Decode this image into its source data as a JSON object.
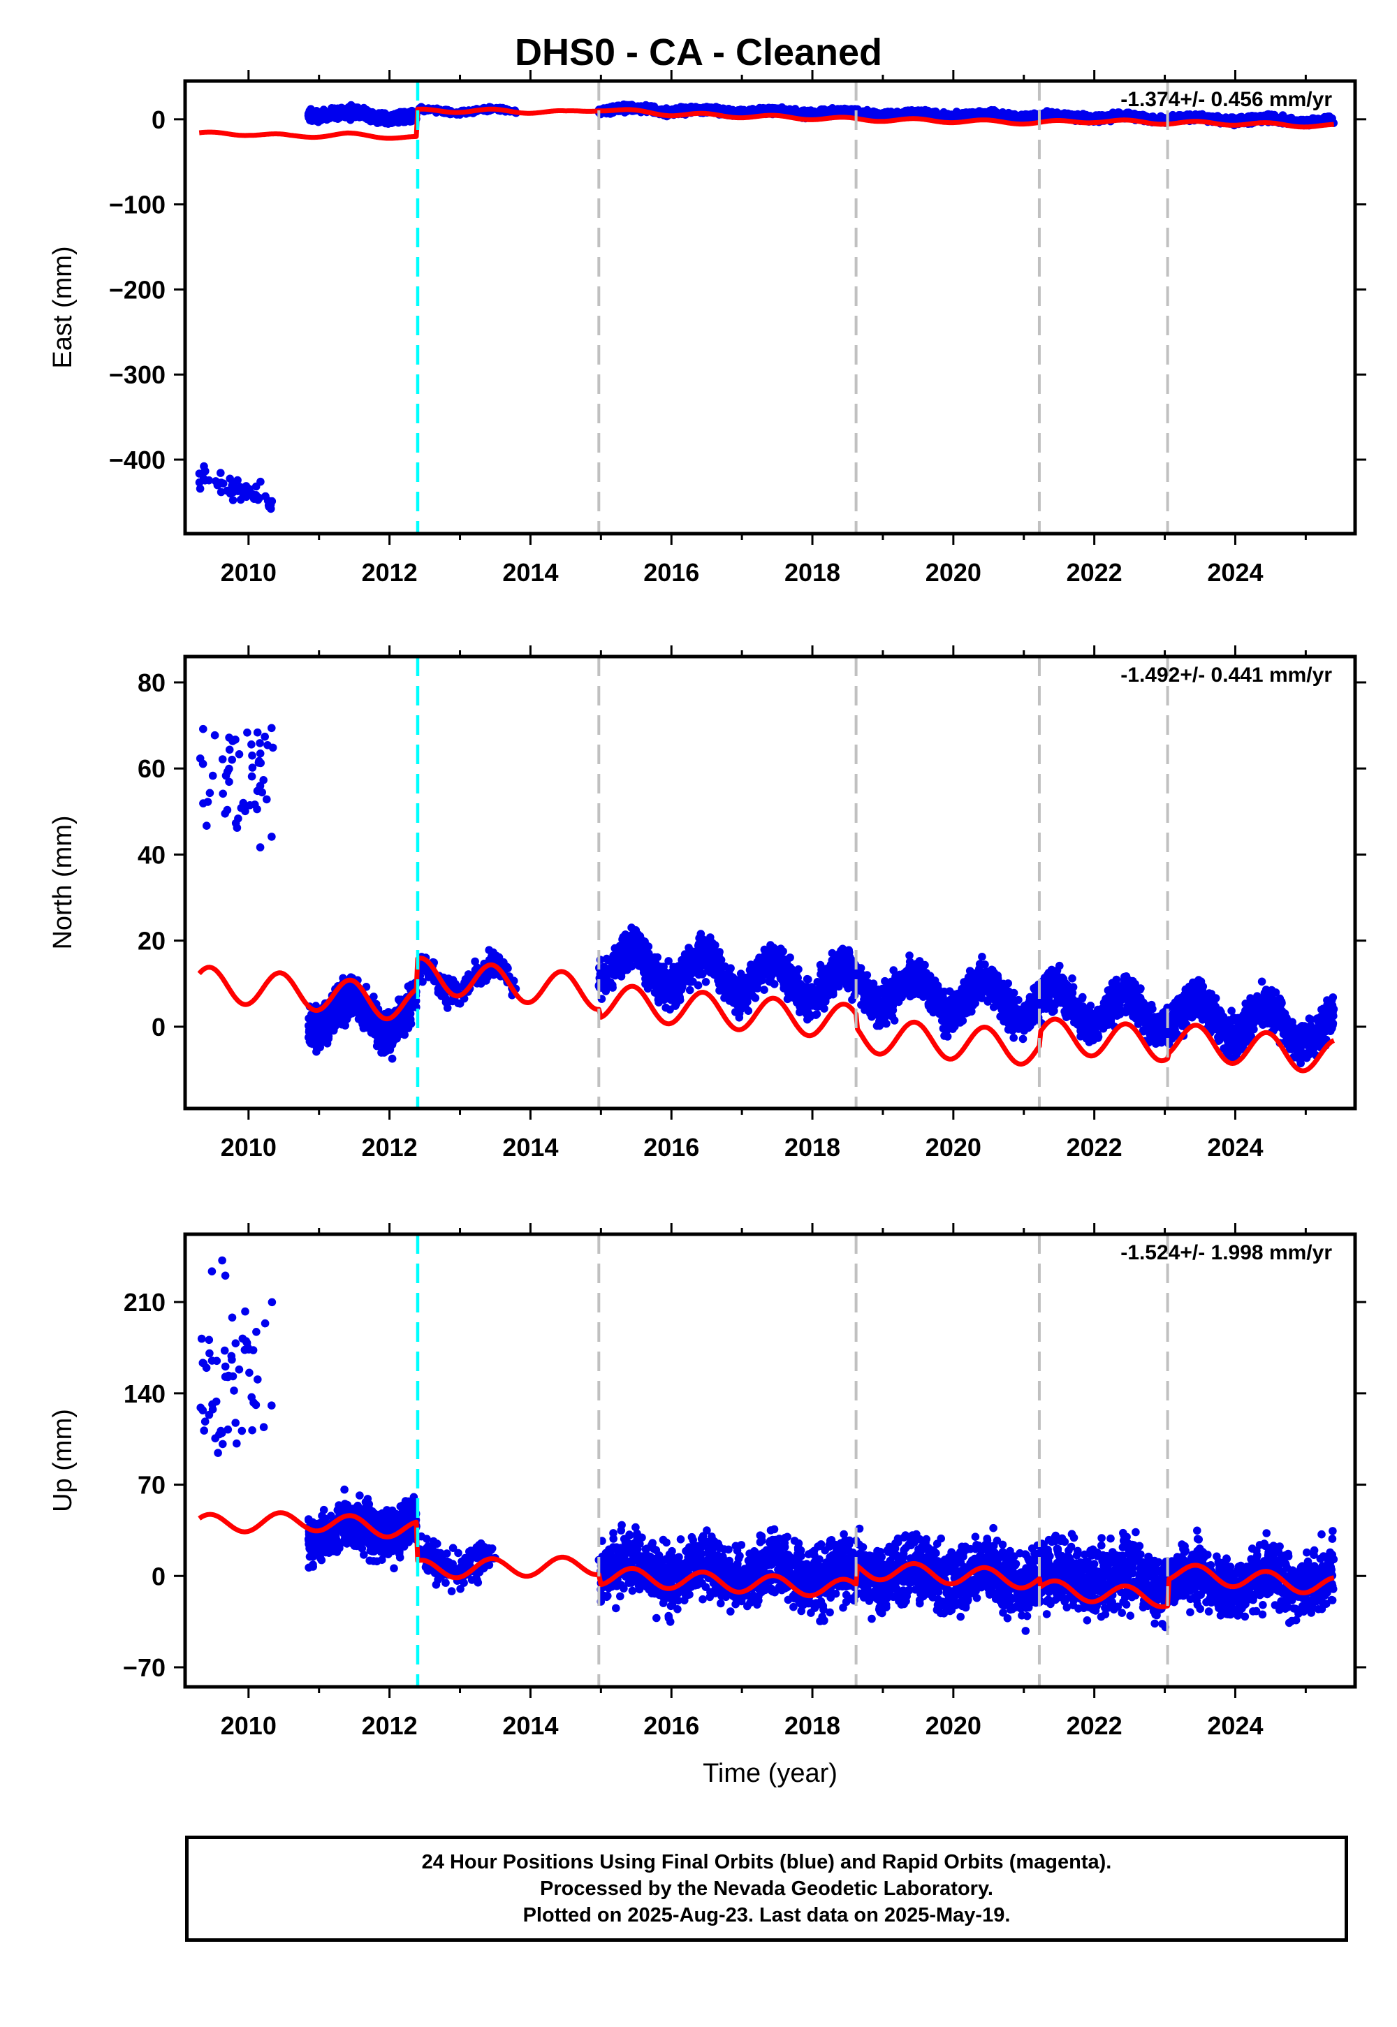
{
  "title": "DHS0  - CA - Cleaned",
  "footer": {
    "line1": "24 Hour Positions Using Final Orbits (blue) and Rapid Orbits (magenta).",
    "line2": "Processed by the Nevada Geodetic Laboratory.",
    "line3": "Plotted on 2025-Aug-23. Last data on 2025-May-19."
  },
  "colors": {
    "data_points": "#0000ee",
    "model_line": "#ff0000",
    "antenna_change": "#00ffff",
    "equipment_change": "#c0c0c0"
  },
  "chart_data": [
    {
      "type": "scatter",
      "component": "east",
      "ylabel": "East (mm)",
      "xlabel": "",
      "rate": "-1.374+/- 0.456 mm/yr",
      "xlim": [
        2009.1,
        2025.7
      ],
      "ylim": [
        -487,
        45
      ],
      "xticks": [
        2010,
        2012,
        2014,
        2016,
        2018,
        2020,
        2022,
        2024
      ],
      "yticks": [
        0,
        -100,
        -200,
        -300,
        -400
      ],
      "steps_cyan": [
        2012.4
      ],
      "steps_gray": [
        2014.97,
        2018.62,
        2021.22,
        2023.04
      ],
      "series": [
        {
          "kind": "points",
          "segments": [
            {
              "x": [
                2009.3,
                2010.35
              ],
              "center": -435,
              "trend": -30,
              "noise": 40,
              "seasonal": 0,
              "density": 55
            },
            {
              "x": [
                2010.85,
                2012.38
              ],
              "center": 5,
              "trend": -5,
              "noise": 18,
              "seasonal": 3,
              "density": 700
            },
            {
              "x": [
                2012.42,
                2013.8
              ],
              "center": 10,
              "trend": 0,
              "noise": 8,
              "seasonal": 2,
              "density": 160
            },
            {
              "x": [
                2014.97,
                2025.4
              ],
              "center": 5,
              "trend": -14,
              "noise": 12,
              "seasonal": 2,
              "density": 3400
            }
          ]
        },
        {
          "kind": "model",
          "points": [
            [
              2009.3,
              -17
            ],
            [
              2010.0,
              -17
            ],
            [
              2010.6,
              -20
            ],
            [
              2011.4,
              -18
            ],
            [
              2012.38,
              -22
            ],
            [
              2012.4,
              10
            ],
            [
              2013.5,
              10
            ],
            [
              2014.5,
              8
            ],
            [
              2014.97,
              12
            ],
            [
              2016.0,
              6
            ],
            [
              2018.62,
              0
            ],
            [
              2020.0,
              -2
            ],
            [
              2021.22,
              -4
            ],
            [
              2022.0,
              -2
            ],
            [
              2023.04,
              -4
            ],
            [
              2024.0,
              -5
            ],
            [
              2025.4,
              -8
            ]
          ],
          "seasonal": 2
        }
      ]
    },
    {
      "type": "scatter",
      "component": "north",
      "ylabel": "North (mm)",
      "xlabel": "",
      "rate": "-1.492+/- 0.441 mm/yr",
      "xlim": [
        2009.1,
        2025.7
      ],
      "ylim": [
        -19,
        86
      ],
      "xticks": [
        2010,
        2012,
        2014,
        2016,
        2018,
        2020,
        2022,
        2024
      ],
      "yticks": [
        80,
        60,
        40,
        20,
        0
      ],
      "steps_cyan": [
        2012.4
      ],
      "steps_gray": [
        2014.97,
        2018.62,
        2021.22,
        2023.04
      ],
      "series": [
        {
          "kind": "points",
          "segments": [
            {
              "x": [
                2009.3,
                2010.35
              ],
              "center": 57,
              "trend": 0,
              "noise": 45,
              "seasonal": 0,
              "density": 55
            },
            {
              "x": [
                2010.85,
                2012.38
              ],
              "center": 3,
              "trend": 0,
              "noise": 14,
              "seasonal": 4,
              "density": 700
            },
            {
              "x": [
                2012.42,
                2013.8
              ],
              "center": 11,
              "trend": 0,
              "noise": 12,
              "seasonal": 3,
              "density": 160
            },
            {
              "x": [
                2014.97,
                2025.4
              ],
              "center": 7,
              "trend": -15,
              "noise": 14,
              "seasonal": 4,
              "density": 3400
            }
          ]
        },
        {
          "kind": "model",
          "points": [
            [
              2009.3,
              10
            ],
            [
              2010.85,
              8
            ],
            [
              2012.38,
              5
            ],
            [
              2012.4,
              12
            ],
            [
              2014.97,
              8
            ],
            [
              2015.0,
              6
            ],
            [
              2018.62,
              1
            ],
            [
              2018.64,
              -2
            ],
            [
              2021.22,
              -5
            ],
            [
              2021.24,
              -2
            ],
            [
              2023.04,
              -4
            ],
            [
              2023.06,
              -3
            ],
            [
              2025.4,
              -7
            ]
          ],
          "seasonal": 4
        }
      ]
    },
    {
      "type": "scatter",
      "component": "up",
      "ylabel": "Up (mm)",
      "xlabel": "Time (year)",
      "rate": "-1.524+/- 1.998 mm/yr",
      "xlim": [
        2009.1,
        2025.7
      ],
      "ylim": [
        -85,
        262
      ],
      "xticks": [
        2010,
        2012,
        2014,
        2016,
        2018,
        2020,
        2022,
        2024
      ],
      "yticks": [
        210,
        140,
        70,
        0,
        -70
      ],
      "steps_cyan": [
        2012.4
      ],
      "steps_gray": [
        2014.97,
        2018.62,
        2021.22,
        2023.04
      ],
      "series": [
        {
          "kind": "points",
          "segments": [
            {
              "x": [
                2009.3,
                2010.35
              ],
              "center": 150,
              "trend": 0,
              "noise": 220,
              "seasonal": 0,
              "density": 60
            },
            {
              "x": [
                2010.85,
                2012.38
              ],
              "center": 35,
              "trend": 5,
              "noise": 55,
              "seasonal": 6,
              "density": 700
            },
            {
              "x": [
                2012.42,
                2013.5
              ],
              "center": 10,
              "trend": 0,
              "noise": 40,
              "seasonal": 6,
              "density": 150
            },
            {
              "x": [
                2014.97,
                2025.4
              ],
              "center": 0,
              "trend": -10,
              "noise": 75,
              "seasonal": 6,
              "density": 3400
            }
          ]
        },
        {
          "kind": "model",
          "points": [
            [
              2009.3,
              40
            ],
            [
              2010.85,
              42
            ],
            [
              2012.38,
              35
            ],
            [
              2012.4,
              5
            ],
            [
              2014.97,
              8
            ],
            [
              2015.0,
              0
            ],
            [
              2018.62,
              -10
            ],
            [
              2018.64,
              5
            ],
            [
              2021.22,
              -3
            ],
            [
              2021.24,
              -10
            ],
            [
              2023.04,
              -17
            ],
            [
              2023.06,
              3
            ],
            [
              2025.4,
              -8
            ]
          ],
          "seasonal": 7
        }
      ]
    }
  ]
}
